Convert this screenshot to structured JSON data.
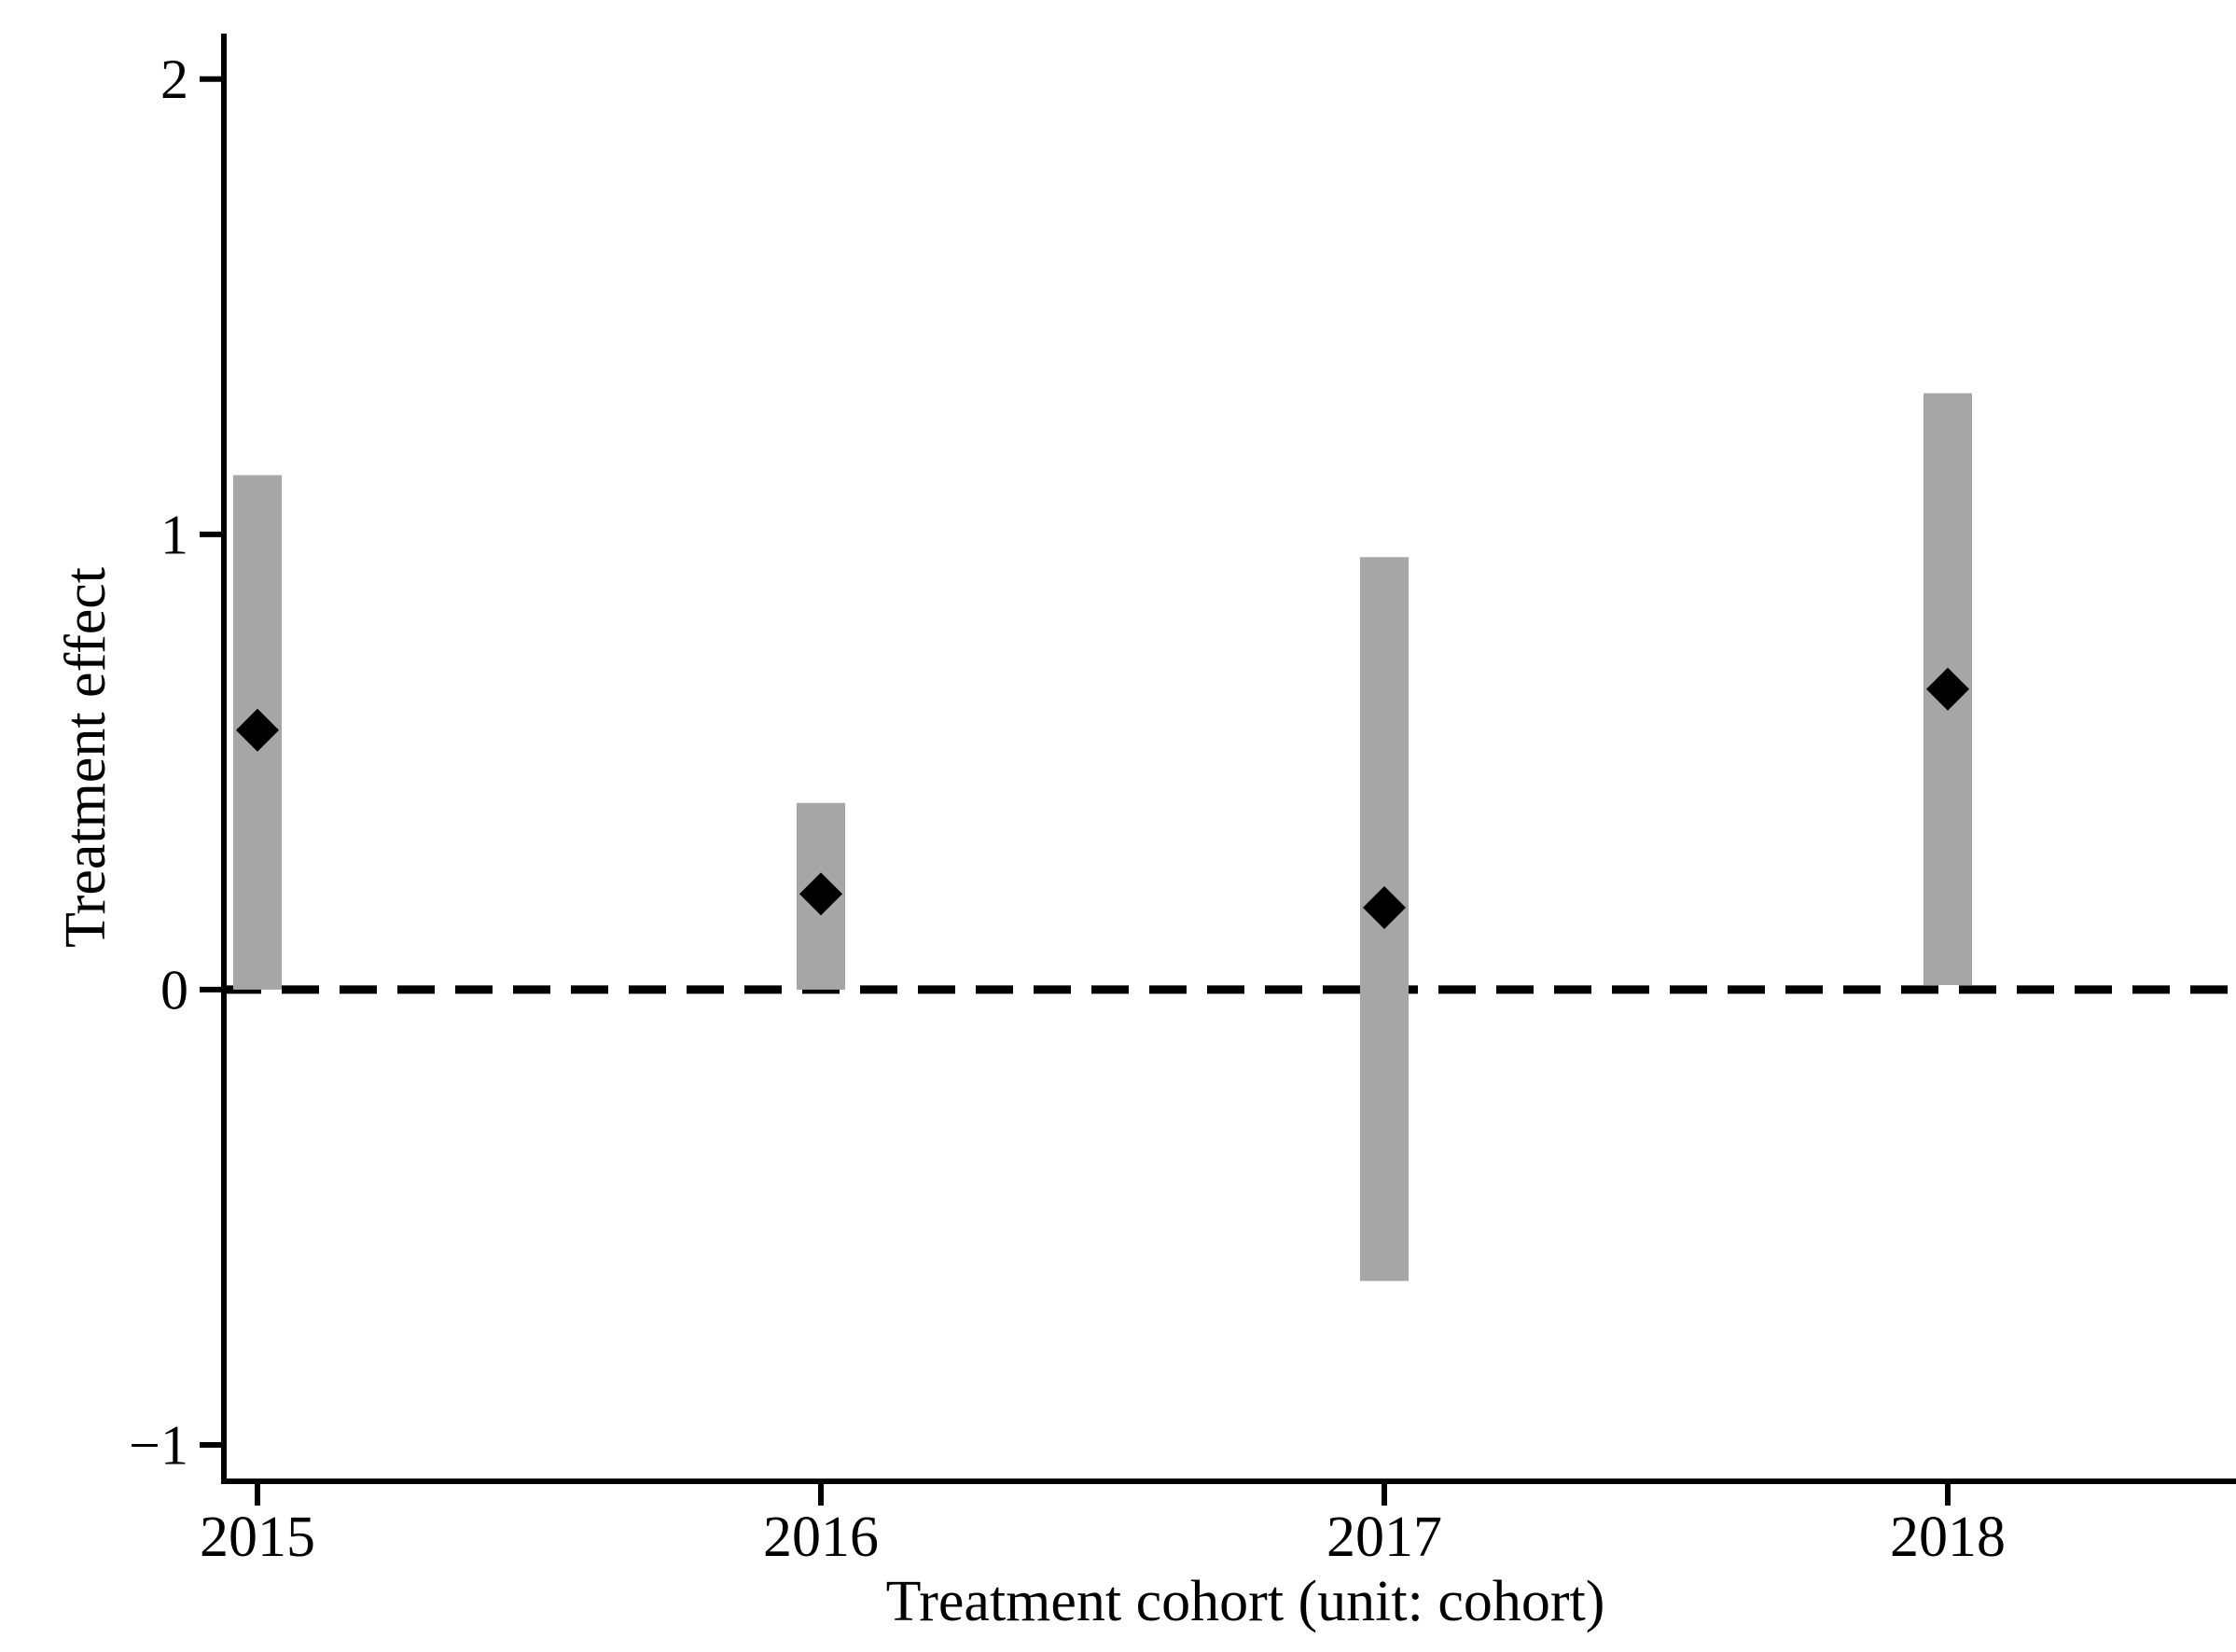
{
  "chart_data": {
    "type": "bar",
    "variant": "coefficient-plot-with-confidence-intervals",
    "title": "",
    "xlabel": "Treatment cohort (unit: cohort)",
    "ylabel": "Treatment effect",
    "categories": [
      "2015",
      "2016",
      "2017",
      "2018"
    ],
    "series": [
      {
        "name": "point-estimate",
        "type": "scatter",
        "marker": "diamond",
        "color": "#000000",
        "values": [
          0.57,
          0.21,
          0.18,
          0.66
        ]
      },
      {
        "name": "confidence-interval",
        "type": "interval-bar",
        "color": "#a6a6a6",
        "low": [
          0.0,
          0.0,
          -0.64,
          0.01
        ],
        "high": [
          1.13,
          0.41,
          0.95,
          1.31
        ]
      }
    ],
    "yticks": [
      2,
      1,
      0,
      -1
    ],
    "ylim": [
      -1.08,
      2.1
    ],
    "reference_line": {
      "y": 0,
      "style": "dashed",
      "color": "#000000"
    },
    "grid": false,
    "legend": "none",
    "axis_color": "#000000",
    "background": "#ffffff"
  }
}
